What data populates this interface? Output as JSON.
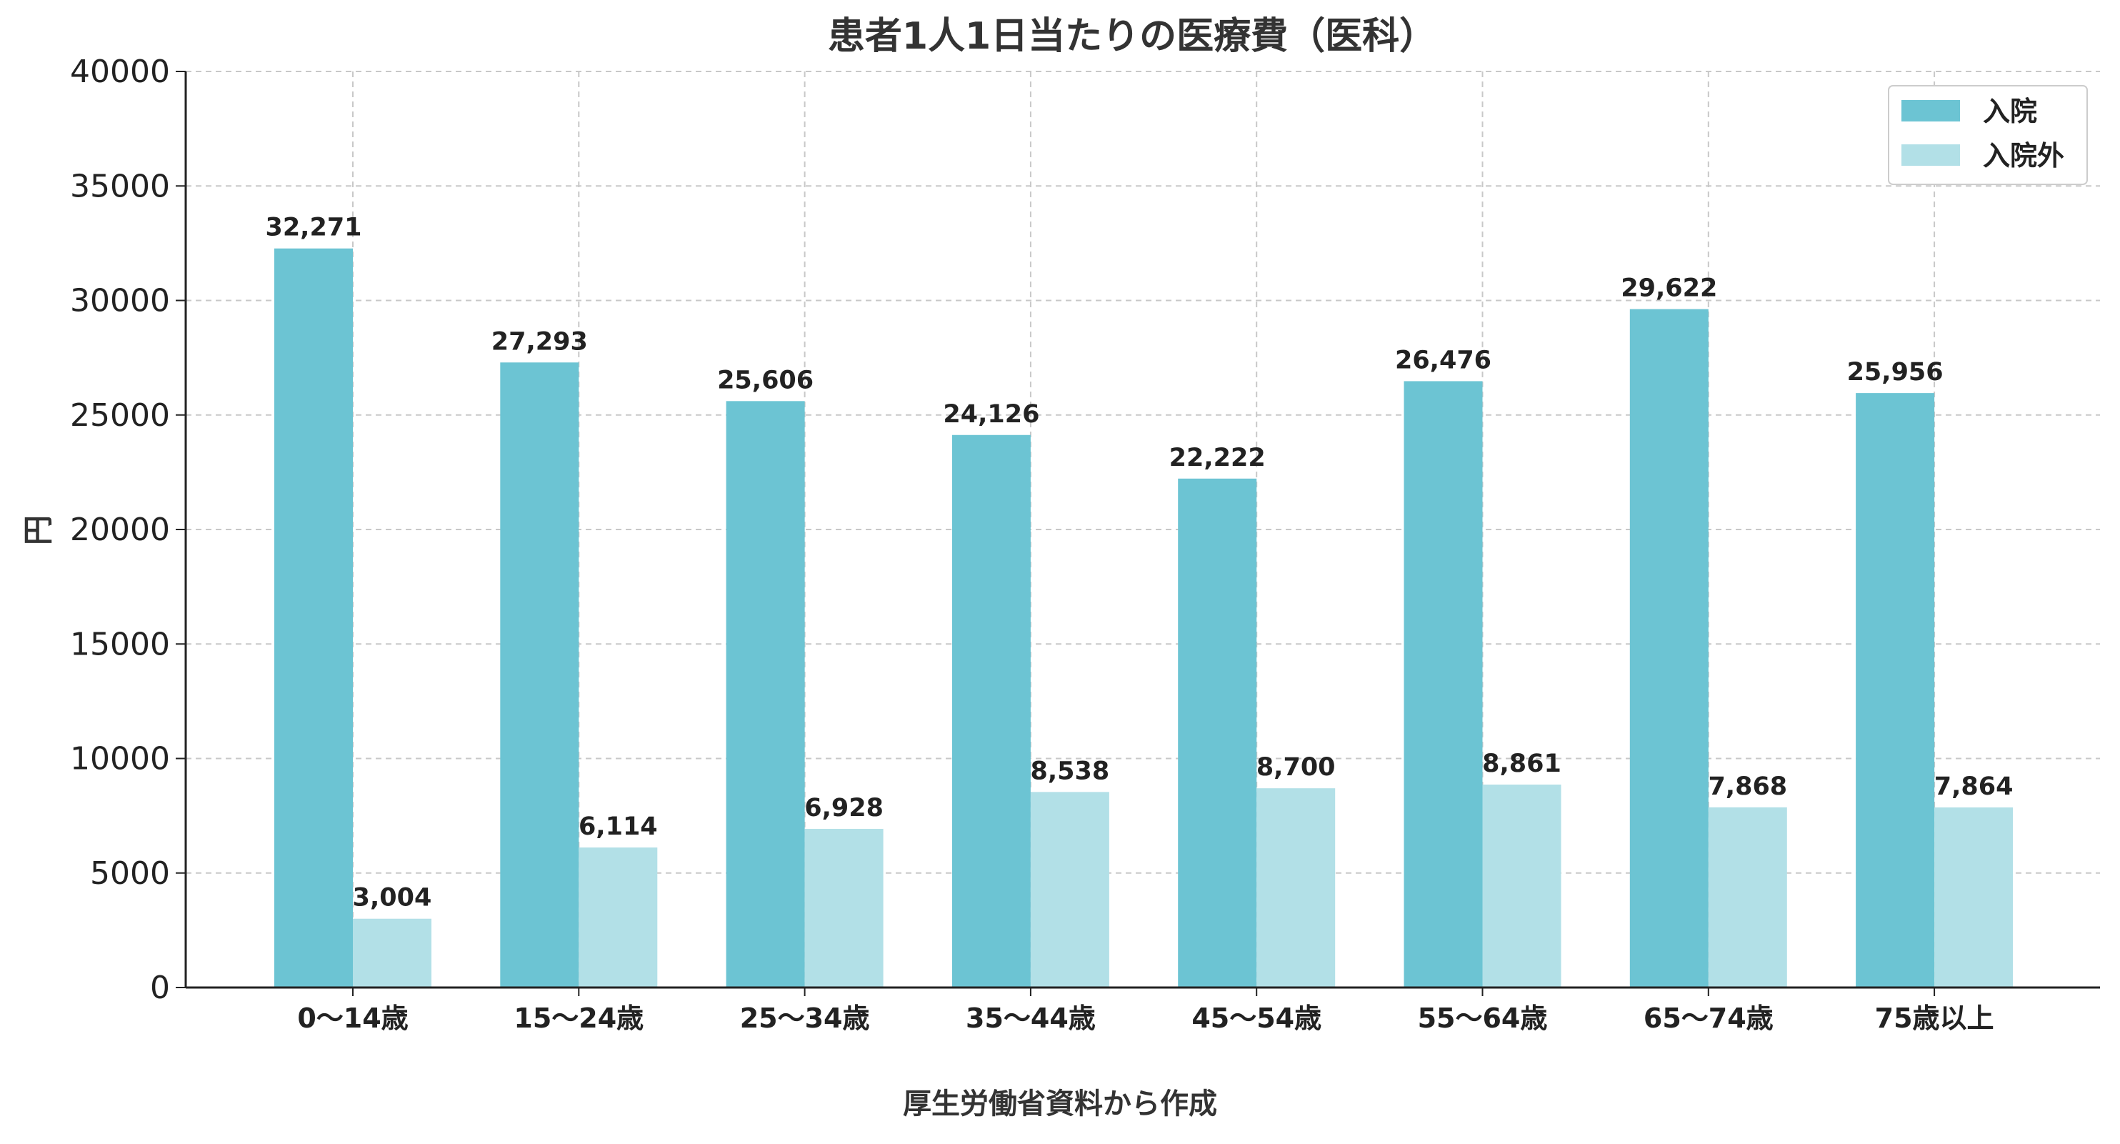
{
  "chart_data": {
    "type": "bar",
    "title": "患者1人1日当たりの医療費（医科）",
    "xlabel": "厚生労働省資料から作成",
    "ylabel": "円",
    "ylim": [
      0,
      40000
    ],
    "yticks": [
      0,
      5000,
      10000,
      15000,
      20000,
      25000,
      30000,
      35000,
      40000
    ],
    "categories": [
      "0〜14歳",
      "15〜24歳",
      "25〜34歳",
      "35〜44歳",
      "45〜54歳",
      "55〜64歳",
      "65〜74歳",
      "75歳以上"
    ],
    "series": [
      {
        "name": "入院",
        "color": "#6cc4d3",
        "values": [
          32271,
          27293,
          25606,
          24126,
          22222,
          26476,
          29622,
          25956
        ],
        "labels": [
          "32,271",
          "27,293",
          "25,606",
          "24,126",
          "22,222",
          "26,476",
          "29,622",
          "25,956"
        ]
      },
      {
        "name": "入院外",
        "color": "#b2e0e7",
        "values": [
          3004,
          6114,
          6928,
          8538,
          8700,
          8861,
          7868,
          7864
        ],
        "labels": [
          "3,004",
          "6,114",
          "6,928",
          "8,538",
          "8,700",
          "8,861",
          "7,868",
          "7,864"
        ]
      }
    ],
    "grid": true,
    "legend_position": "top-right"
  }
}
